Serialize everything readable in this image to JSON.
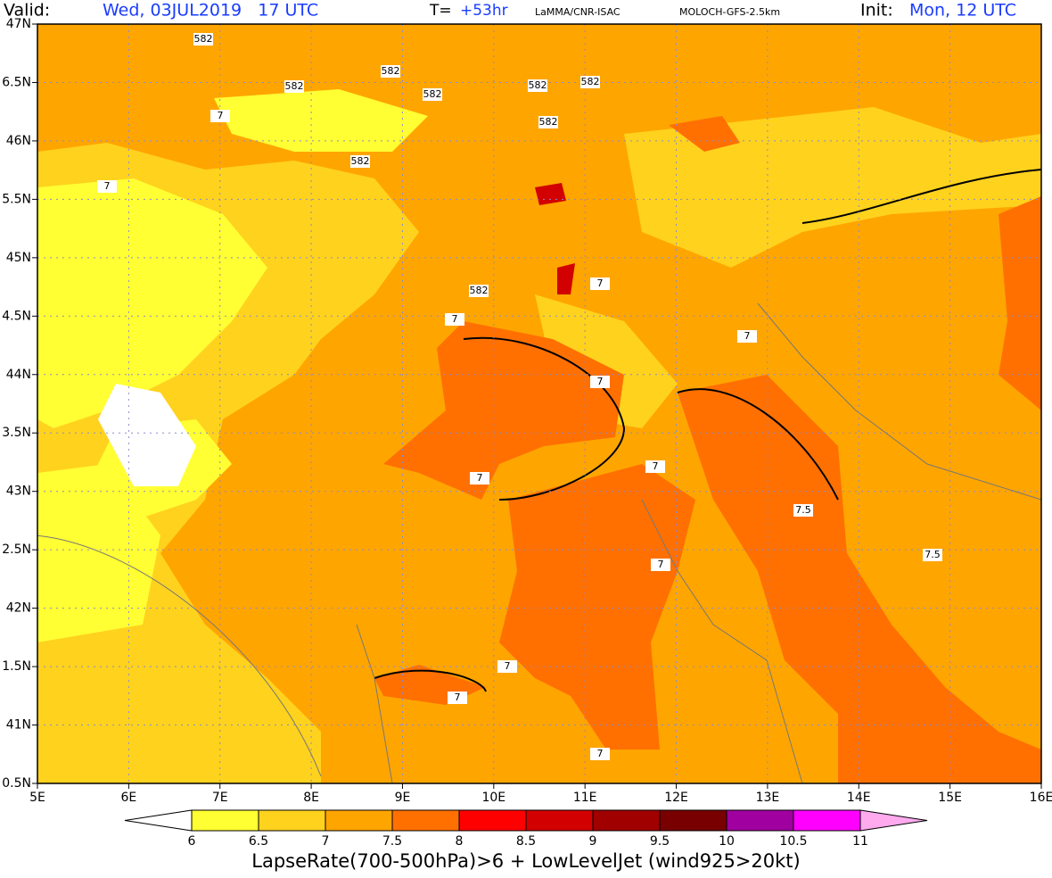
{
  "header": {
    "valid_label": "Valid:",
    "valid_value": "Wed, 03JUL2019   17 UTC",
    "t_label": "T=",
    "t_value": "+53hr",
    "source": "LaMMA/CNR-ISAC",
    "model": "MOLOCH-GFS-2.5km",
    "init_label": "Init:",
    "init_value": "Mon, 12 UTC"
  },
  "map": {
    "lonlim": [
      5,
      16
    ],
    "latlim": [
      40.5,
      47
    ],
    "lonticks": [
      {
        "value": 5,
        "label": "5E"
      },
      {
        "value": 6,
        "label": "6E"
      },
      {
        "value": 7,
        "label": "7E"
      },
      {
        "value": 8,
        "label": "8E"
      },
      {
        "value": 9,
        "label": "9E"
      },
      {
        "value": 10,
        "label": "10E"
      },
      {
        "value": 11,
        "label": "11E"
      },
      {
        "value": 12,
        "label": "12E"
      },
      {
        "value": 13,
        "label": "13E"
      },
      {
        "value": 14,
        "label": "14E"
      },
      {
        "value": 15,
        "label": "15E"
      },
      {
        "value": 16,
        "label": "16E"
      }
    ],
    "latticks": [
      {
        "value": 47,
        "label": "47N"
      },
      {
        "value": 46.5,
        "label": "6.5N"
      },
      {
        "value": 46,
        "label": "46N"
      },
      {
        "value": 45.5,
        "label": "5.5N"
      },
      {
        "value": 45,
        "label": "45N"
      },
      {
        "value": 44.5,
        "label": "4.5N"
      },
      {
        "value": 44,
        "label": "44N"
      },
      {
        "value": 43.5,
        "label": "3.5N"
      },
      {
        "value": 43,
        "label": "43N"
      },
      {
        "value": 42.5,
        "label": "2.5N"
      },
      {
        "value": 42,
        "label": "42N"
      },
      {
        "value": 41.5,
        "label": "1.5N"
      },
      {
        "value": 41,
        "label": "41N"
      },
      {
        "value": 40.5,
        "label": "0.5N"
      }
    ],
    "contour_labels": [
      "582",
      "582",
      "582",
      "582",
      "582",
      "582",
      "582",
      "582",
      "582",
      "7",
      "7",
      "7",
      "7",
      "7",
      "7",
      "7",
      "7",
      "7",
      "7",
      "7",
      "7",
      "7.5",
      "7.5"
    ]
  },
  "colorbar": {
    "levels": [
      6,
      6.5,
      7,
      7.5,
      8,
      8.5,
      9,
      9.5,
      10,
      10.5,
      11
    ],
    "colors": [
      "#ffff33",
      "#ffd21e",
      "#ffa500",
      "#ff7000",
      "#ff0000",
      "#d20000",
      "#a00000",
      "#780000",
      "#a000a0",
      "#ff00ff"
    ],
    "under_color": "#ffffff",
    "over_color": "#ffaaee",
    "caption": "LapseRate(700-500hPa)>6 + LowLevelJet (wind925>20kt)"
  }
}
